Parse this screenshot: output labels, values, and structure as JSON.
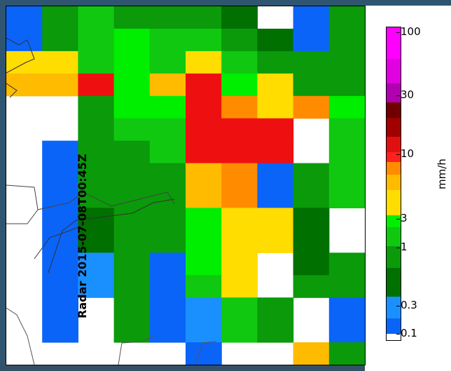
{
  "map": {
    "label": "Radar 2015-07-08T00:45Z",
    "units": "mm/h",
    "colorbar_ticks": [
      "100",
      "30",
      "10",
      "3",
      "1",
      "0.3",
      "0.1"
    ],
    "colors": {
      "v01": "#0a64f8",
      "v03": "#1a90ff",
      "v1": "#0a7d0a",
      "v3": "#00ee00",
      "v10": "#ffdd00",
      "v30": "#ff1010",
      "v100": "#ff00ff"
    },
    "grid_values": [
      [
        "0.1",
        "0.8",
        "1.5",
        "0.8",
        "0.8",
        "0.8",
        "0.6",
        "none",
        "0.2",
        "1.0"
      ],
      [
        "0.1",
        "0.8",
        "1.5",
        "2.5",
        "1.5",
        "1.5",
        "1.0",
        "0.5",
        "0.2",
        "1.0"
      ],
      [
        "3",
        "3",
        "1.5",
        "2.5",
        "1.5",
        "3.5",
        "1.5",
        "1.0",
        "0.8",
        "1.0"
      ],
      [
        "5",
        "5",
        "15",
        "2.5",
        "5",
        "15",
        "2.5",
        "4",
        "1.0",
        "1.0"
      ],
      [
        "none",
        "none",
        "1.0",
        "2.5",
        "2.5",
        "15",
        "7",
        "4",
        "6",
        "2.5"
      ],
      [
        "none",
        "none",
        "1.0",
        "1.5",
        "1.5",
        "15",
        "15",
        "15",
        "none",
        "1.5"
      ],
      [
        "none",
        "0.1",
        "0.8",
        "1.0",
        "1.5",
        "15",
        "15",
        "15",
        "none",
        "1.5"
      ],
      [
        "none",
        "0.1",
        "0.8",
        "1.0",
        "1.0",
        "5",
        "7",
        "0.2",
        "1.0",
        "1.5"
      ],
      [
        "none",
        "0.1",
        "0.8",
        "1.0",
        "1.0",
        "5",
        "7",
        "0.2",
        "1.0",
        "1.5"
      ],
      [
        "none",
        "0.1",
        "0.5",
        "1.0",
        "1.0",
        "2.5",
        "4",
        "3",
        "0.6",
        "none"
      ],
      [
        "none",
        "0.1",
        "0.5",
        "1.0",
        "1.0",
        "2.5",
        "4",
        "3",
        "0.6",
        "none"
      ],
      [
        "none",
        "0.1",
        "0.3",
        "1.0",
        "0.2",
        "2.0",
        "4",
        "none",
        "0.6",
        "0.8"
      ],
      [
        "none",
        "0.2",
        "0.3",
        "1.0",
        "0.2",
        "1.5",
        "4",
        "none",
        "0.8",
        "0.8"
      ],
      [
        "none",
        "0.1",
        "none",
        "1.0",
        "0.2",
        "0.3",
        "1.5",
        "1.0",
        "none",
        "0.2"
      ],
      [
        "none",
        "0.1",
        "none",
        "1.0",
        "0.2",
        "0.3",
        "1.5",
        "1.0",
        "none",
        "0.2"
      ],
      [
        "none",
        "none",
        "none",
        "none",
        "none",
        "0.1",
        "none",
        "none",
        "5",
        "0.8"
      ]
    ]
  }
}
